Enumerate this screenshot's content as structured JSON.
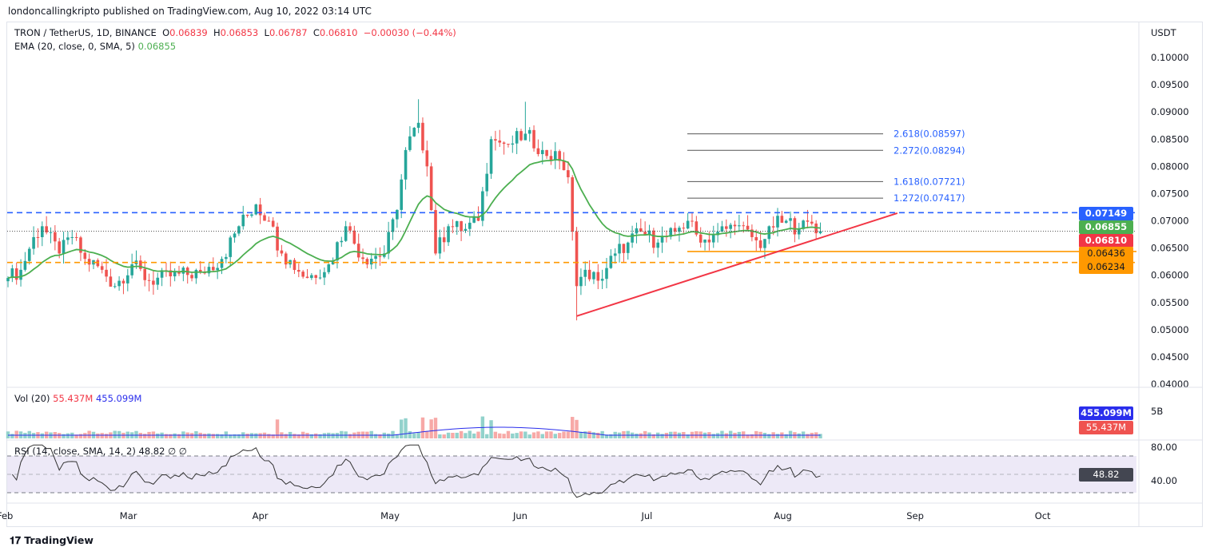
{
  "header": {
    "published": "londoncallingkripto published on TradingView.com, Aug 10, 2022 03:14 UTC"
  },
  "legend": {
    "symbol": "TRON / TetherUS, 1D, BINANCE",
    "o_label": "O",
    "o": "0.06839",
    "h_label": "H",
    "h": "0.06853",
    "l_label": "L",
    "l": "0.06787",
    "c_label": "C",
    "c": "0.06810",
    "change": "−0.00030 (−0.44%)",
    "ema_label": "EMA (20, close, 0, SMA, 5)",
    "ema_value": "0.06855",
    "vol_label": "Vol (20)",
    "vol_value": "55.437M",
    "vol_ma": "455.099M",
    "rsi_label": "RSI (14, close, SMA, 14, 2)",
    "rsi_value": "48.82",
    "rsi_extra": "∅  ∅"
  },
  "axis": {
    "currency": "USDT",
    "price_ticks": [
      "0.10000",
      "0.09500",
      "0.09000",
      "0.08500",
      "0.08000",
      "0.07500",
      "0.07000",
      "0.06500",
      "0.06000",
      "0.05500",
      "0.05000",
      "0.04500",
      "0.04000"
    ],
    "vol_tick": "5B",
    "rsi_ticks": [
      "80.00",
      "40.00"
    ],
    "months": [
      {
        "label": "Feb",
        "day": 0
      },
      {
        "label": "Mar",
        "day": 28
      },
      {
        "label": "Apr",
        "day": 59
      },
      {
        "label": "May",
        "day": 89
      },
      {
        "label": "Jun",
        "day": 120
      },
      {
        "label": "Jul",
        "day": 150
      },
      {
        "label": "Aug",
        "day": 181
      },
      {
        "label": "Sep",
        "day": 212
      },
      {
        "label": "Oct",
        "day": 242
      }
    ]
  },
  "tags": {
    "resistance": "0.07149",
    "ema": "0.06855",
    "last": "0.06810",
    "support1": "0.06436",
    "support2": "0.06234",
    "vol_ma": "455.099M",
    "vol": "55.437M",
    "rsi": "48.82"
  },
  "colors": {
    "up": "#26a69a",
    "down": "#ef5350",
    "ema": "#4caf50",
    "blue_line": "#2962ff",
    "orange": "#ff9800",
    "trend": "#f23645",
    "fib": "#2962ff",
    "vol_ma": "#2a2eec"
  },
  "fib_levels": [
    {
      "label": "2.618(0.08597)",
      "price": 0.08597
    },
    {
      "label": "2.272(0.08294)",
      "price": 0.08294
    },
    {
      "label": "1.618(0.07721)",
      "price": 0.07721
    },
    {
      "label": "1.272(0.07417)",
      "price": 0.07417
    }
  ],
  "footer": "TradingView",
  "chart_data": {
    "type": "candlestick",
    "title": "TRON / TetherUS, 1D, BINANCE",
    "ylabel": "USDT",
    "ylim": [
      0.04,
      0.1
    ],
    "close_path": [
      [
        0,
        0.0595
      ],
      [
        3,
        0.061
      ],
      [
        6,
        0.067
      ],
      [
        8,
        0.069
      ],
      [
        12,
        0.064
      ],
      [
        15,
        0.067
      ],
      [
        18,
        0.063
      ],
      [
        22,
        0.061
      ],
      [
        25,
        0.058
      ],
      [
        29,
        0.062
      ],
      [
        33,
        0.059
      ],
      [
        38,
        0.0598
      ],
      [
        45,
        0.0605
      ],
      [
        50,
        0.063
      ],
      [
        54,
        0.069
      ],
      [
        58,
        0.073
      ],
      [
        61,
        0.07
      ],
      [
        64,
        0.064
      ],
      [
        70,
        0.0595
      ],
      [
        75,
        0.062
      ],
      [
        79,
        0.069
      ],
      [
        83,
        0.063
      ],
      [
        88,
        0.064
      ],
      [
        91,
        0.072
      ],
      [
        93,
        0.083
      ],
      [
        96,
        0.088
      ],
      [
        98,
        0.08
      ],
      [
        100,
        0.064
      ],
      [
        103,
        0.069
      ],
      [
        107,
        0.0685
      ],
      [
        110,
        0.07
      ],
      [
        113,
        0.085
      ],
      [
        117,
        0.084
      ],
      [
        121,
        0.086
      ],
      [
        125,
        0.083
      ],
      [
        129,
        0.081
      ],
      [
        131,
        0.078
      ],
      [
        132,
        0.068
      ],
      [
        133,
        0.058
      ],
      [
        135,
        0.061
      ],
      [
        138,
        0.059
      ],
      [
        142,
        0.064
      ],
      [
        145,
        0.066
      ],
      [
        148,
        0.068
      ],
      [
        152,
        0.066
      ],
      [
        156,
        0.068
      ],
      [
        159,
        0.07
      ],
      [
        162,
        0.066
      ],
      [
        166,
        0.068
      ],
      [
        170,
        0.069
      ],
      [
        174,
        0.067
      ],
      [
        176,
        0.065
      ],
      [
        178,
        0.069
      ],
      [
        182,
        0.07
      ],
      [
        185,
        0.0685
      ],
      [
        188,
        0.0695
      ],
      [
        190,
        0.0681
      ]
    ],
    "indicators": {
      "ema_period": 20,
      "rsi_period": 14,
      "rsi_bands": [
        70,
        30
      ]
    },
    "trendline": {
      "from": {
        "day": 133,
        "price": 0.0525
      },
      "to": {
        "day": 208,
        "price": 0.0714
      }
    },
    "horizontal_levels": [
      0.07149,
      0.06436,
      0.06234,
      0.0681
    ]
  }
}
